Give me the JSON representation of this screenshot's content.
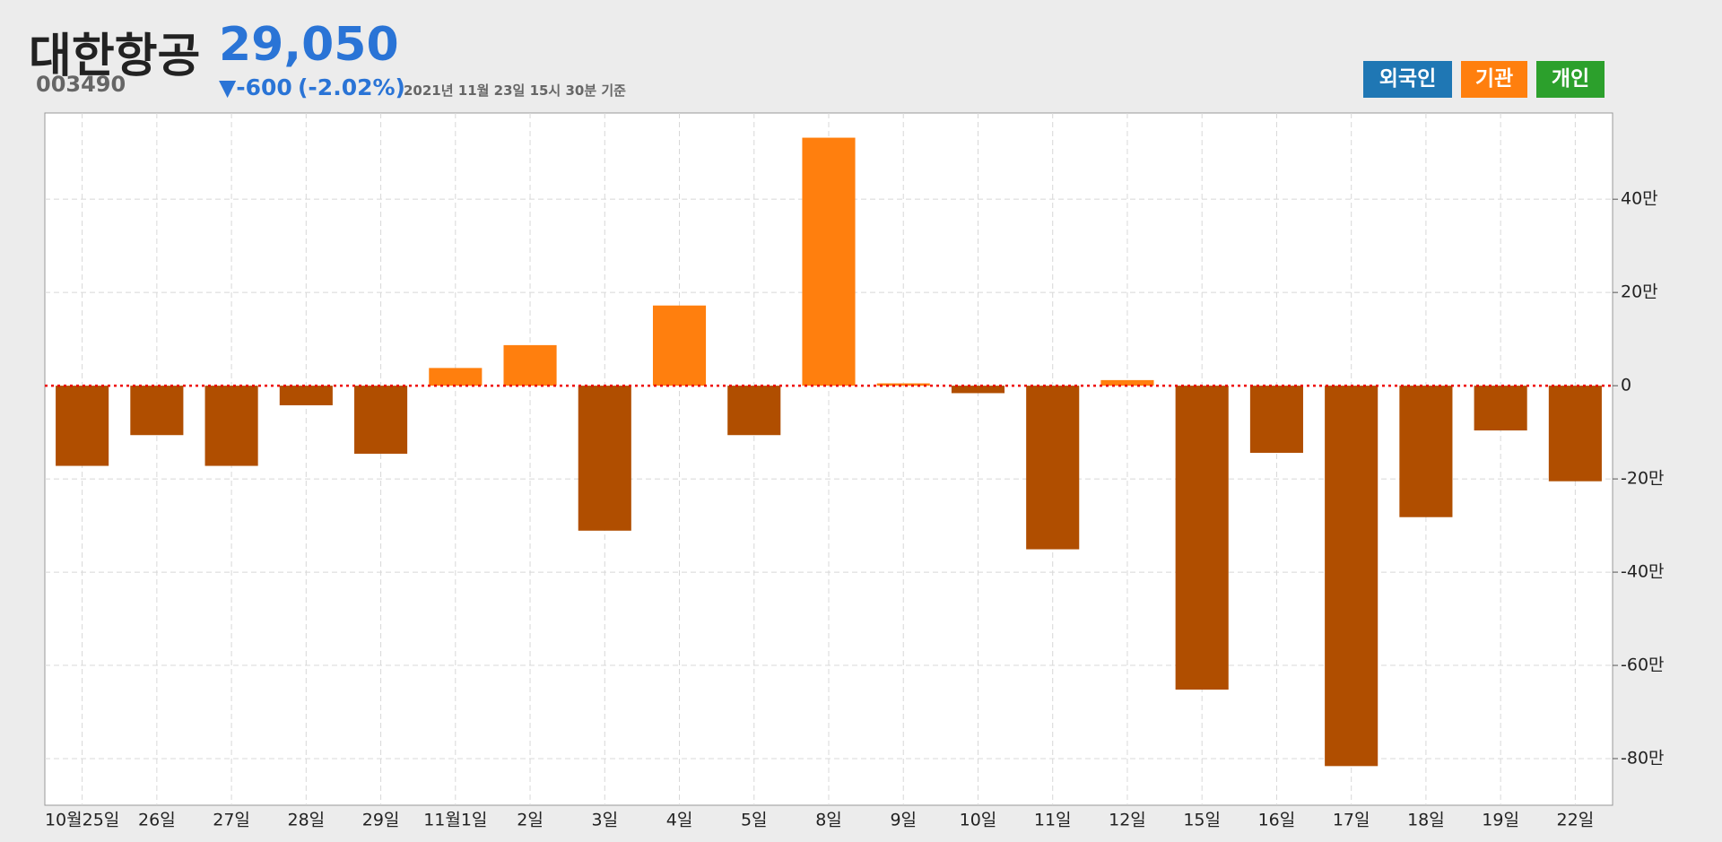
{
  "header": {
    "name": "대한항공",
    "code": "003490",
    "price": "29,050",
    "change": "▼-600",
    "change_rate": "(-2.02%)",
    "timestamp": "2021년 11월 23일 15시 30분 기준"
  },
  "chart_data": {
    "type": "bar",
    "categories": [
      "10월25일",
      "26일",
      "27일",
      "28일",
      "29일",
      "11월1일",
      "2일",
      "3일",
      "4일",
      "5일",
      "8일",
      "9일",
      "10일",
      "11일",
      "12일",
      "15일",
      "16일",
      "17일",
      "18일",
      "19일",
      "22일"
    ],
    "values": [
      -172000,
      -106000,
      -172000,
      -42000,
      -146000,
      38000,
      87000,
      -311000,
      172000,
      -106000,
      532000,
      5000,
      -16000,
      -351000,
      12000,
      -652000,
      -144000,
      -816000,
      -282000,
      -96000,
      -205000
    ],
    "positive_color": "#ff7f0e",
    "negative_color": "#b04e00",
    "ylim": [
      -900000,
      585000
    ],
    "yticks": [
      {
        "value": 400000,
        "label": "40만"
      },
      {
        "value": 200000,
        "label": "20만"
      },
      0,
      {
        "value": -200000,
        "label": "-20만"
      },
      {
        "value": -400000,
        "label": "-40만"
      },
      {
        "value": -600000,
        "label": "-60만"
      },
      {
        "value": -800000,
        "label": "-80만"
      }
    ],
    "grid": true,
    "legend": [
      {
        "name": "외국인",
        "color": "#1f77b4"
      },
      {
        "name": "기관",
        "color": "#ff7f0e"
      },
      {
        "name": "개인",
        "color": "#2ca02c"
      }
    ]
  }
}
